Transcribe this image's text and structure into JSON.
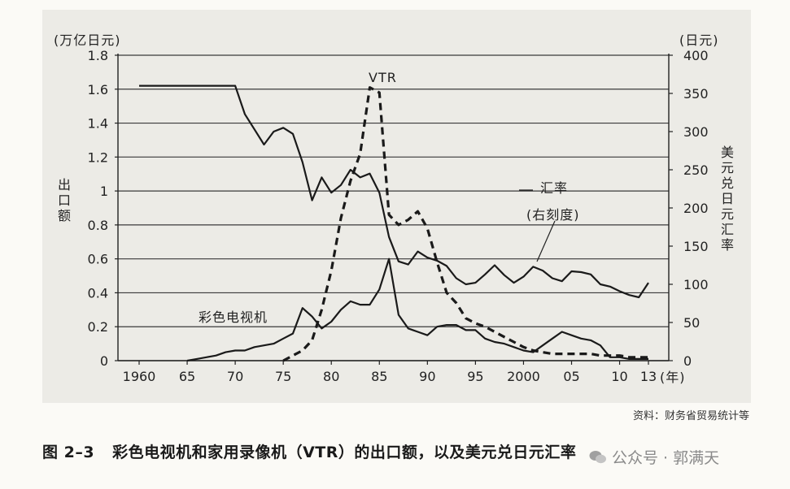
{
  "chart_data": {
    "type": "line",
    "left_axis_unit": "(万亿日元)",
    "left_axis_label": "出口额",
    "right_axis_unit": "(日元)",
    "right_axis_label": "美元兑日元汇率",
    "x_unit": "(年)",
    "x_ticks": [
      "1960",
      "65",
      "70",
      "75",
      "80",
      "85",
      "90",
      "95",
      "2000",
      "05",
      "10",
      "13"
    ],
    "x_tick_values": [
      1960,
      1965,
      1970,
      1975,
      1980,
      1985,
      1990,
      1995,
      2000,
      2005,
      2010,
      2013
    ],
    "x_range": [
      1960,
      2013
    ],
    "y_left_ticks": [
      "0",
      "0.2",
      "0.4",
      "0.6",
      "0.8",
      "1",
      "1.2",
      "1.4",
      "1.6",
      "1.8"
    ],
    "y_left_range": [
      0,
      1.8
    ],
    "y_right_ticks": [
      "0",
      "50",
      "100",
      "150",
      "200",
      "250",
      "300",
      "350",
      "400"
    ],
    "y_right_range": [
      0,
      400
    ],
    "series": [
      {
        "name": "彩色电视机",
        "axis": "left",
        "style": "solid",
        "x": [
          1965,
          1966,
          1967,
          1968,
          1969,
          1970,
          1971,
          1972,
          1973,
          1974,
          1975,
          1976,
          1977,
          1978,
          1979,
          1980,
          1981,
          1982,
          1983,
          1984,
          1985,
          1986,
          1987,
          1988,
          1989,
          1990,
          1991,
          1992,
          1993,
          1994,
          1995,
          1996,
          1997,
          1998,
          1999,
          2000,
          2001,
          2002,
          2003,
          2004,
          2005,
          2006,
          2007,
          2008,
          2009,
          2010,
          2011,
          2012,
          2013
        ],
        "y": [
          0.0,
          0.01,
          0.02,
          0.03,
          0.05,
          0.06,
          0.06,
          0.08,
          0.09,
          0.1,
          0.13,
          0.16,
          0.31,
          0.26,
          0.19,
          0.23,
          0.3,
          0.35,
          0.33,
          0.33,
          0.42,
          0.6,
          0.27,
          0.19,
          0.17,
          0.15,
          0.2,
          0.21,
          0.21,
          0.18,
          0.18,
          0.13,
          0.11,
          0.1,
          0.08,
          0.06,
          0.05,
          0.09,
          0.13,
          0.17,
          0.15,
          0.13,
          0.12,
          0.09,
          0.02,
          0.02,
          0.01,
          0.01,
          0.01
        ]
      },
      {
        "name": "VTR",
        "axis": "left",
        "style": "dashed",
        "x": [
          1975,
          1976,
          1977,
          1978,
          1979,
          1980,
          1981,
          1982,
          1983,
          1984,
          1985,
          1986,
          1987,
          1988,
          1989,
          1990,
          1991,
          1992,
          1993,
          1994,
          1995,
          1996,
          1997,
          1998,
          1999,
          2000,
          2001,
          2002,
          2003,
          2004,
          2005,
          2006,
          2007,
          2008,
          2009,
          2010,
          2011,
          2012,
          2013
        ],
        "y": [
          0.0,
          0.03,
          0.06,
          0.12,
          0.3,
          0.53,
          0.84,
          1.06,
          1.22,
          1.61,
          1.58,
          0.86,
          0.8,
          0.83,
          0.88,
          0.78,
          0.58,
          0.4,
          0.34,
          0.25,
          0.22,
          0.2,
          0.17,
          0.14,
          0.11,
          0.08,
          0.06,
          0.05,
          0.04,
          0.04,
          0.04,
          0.04,
          0.04,
          0.03,
          0.03,
          0.03,
          0.02,
          0.02,
          0.02
        ]
      },
      {
        "name": "汇率",
        "axis": "right",
        "style": "solid",
        "x": [
          1960,
          1962,
          1964,
          1966,
          1968,
          1970,
          1971,
          1972,
          1973,
          1974,
          1975,
          1976,
          1977,
          1978,
          1979,
          1980,
          1981,
          1982,
          1983,
          1984,
          1985,
          1986,
          1987,
          1988,
          1989,
          1990,
          1991,
          1992,
          1993,
          1994,
          1995,
          1996,
          1997,
          1998,
          1999,
          2000,
          2001,
          2002,
          2003,
          2004,
          2005,
          2006,
          2007,
          2008,
          2009,
          2010,
          2011,
          2012,
          2013
        ],
        "y": [
          360,
          360,
          360,
          360,
          360,
          360,
          323,
          303,
          283,
          300,
          305,
          297,
          260,
          210,
          240,
          220,
          230,
          250,
          240,
          245,
          220,
          162,
          130,
          126,
          143,
          135,
          131,
          124,
          108,
          100,
          102,
          113,
          125,
          112,
          102,
          110,
          123,
          118,
          108,
          104,
          117,
          116,
          113,
          100,
          97,
          91,
          86,
          83,
          102
        ]
      }
    ],
    "annotations": {
      "vtr": "VTR",
      "tv": "彩色电视机",
      "rate": "汇率",
      "rate_note": "(右刻度)"
    }
  },
  "source_note": "资料：财务省贸易统计等",
  "caption": {
    "number": "图 2–3",
    "text": "彩色电视机和家用录像机（VTR）的出口额，以及美元兑日元汇率"
  },
  "watermark": "公众号 · 郭满天"
}
